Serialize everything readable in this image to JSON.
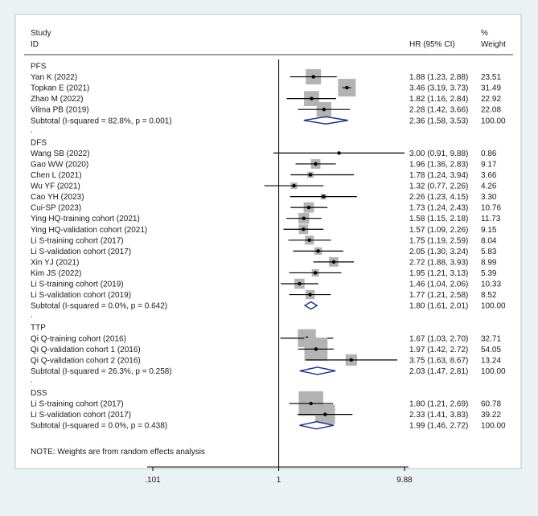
{
  "chart_data": {
    "type": "forest",
    "header": {
      "study_label_1": "Study",
      "study_label_2": "ID",
      "hr_label": "HR (95% CI)",
      "weight_label_1": "%",
      "weight_label_2": "Weight"
    },
    "x_scale": "log",
    "xlim": [
      0.101,
      9.88
    ],
    "ticks": [
      {
        "value": 0.101,
        "label": ".101"
      },
      {
        "value": 1,
        "label": "1"
      },
      {
        "value": 9.88,
        "label": "9.88"
      }
    ],
    "null_line": 1,
    "note": "NOTE: Weights are from random effects analysis",
    "groups": [
      {
        "name": "PFS",
        "studies": [
          {
            "study": "Yan K (2022)",
            "hr": 1.88,
            "lo": 1.23,
            "hi": 2.88,
            "ci_text": "1.88 (1.23, 2.88)",
            "weight": 23.51,
            "weight_text": "23.51"
          },
          {
            "study": "Topkan E (2021)",
            "hr": 3.46,
            "lo": 3.19,
            "hi": 3.73,
            "ci_text": "3.46 (3.19, 3.73)",
            "weight": 31.49,
            "weight_text": "31.49"
          },
          {
            "study": "Zhao M (2022)",
            "hr": 1.82,
            "lo": 1.16,
            "hi": 2.84,
            "ci_text": "1.82 (1.16, 2.84)",
            "weight": 22.92,
            "weight_text": "22.92"
          },
          {
            "study": "Vilma PB (2019)",
            "hr": 2.28,
            "lo": 1.42,
            "hi": 3.66,
            "ci_text": "2.28 (1.42, 3.66)",
            "weight": 22.08,
            "weight_text": "22.08"
          }
        ],
        "subtotal": {
          "label": "Subtotal  (I-squared = 82.8%, p = 0.001)",
          "hr": 2.36,
          "lo": 1.58,
          "hi": 3.53,
          "ci_text": "2.36 (1.58, 3.53)",
          "weight_text": "100.00"
        }
      },
      {
        "name": "DFS",
        "studies": [
          {
            "study": "Wang SB (2022)",
            "hr": 3.0,
            "lo": 0.91,
            "hi": 9.88,
            "ci_text": "3.00 (0.91, 9.88)",
            "weight": 0.86,
            "weight_text": "0.86"
          },
          {
            "study": "Gao WW (2020)",
            "hr": 1.96,
            "lo": 1.36,
            "hi": 2.83,
            "ci_text": "1.96 (1.36, 2.83)",
            "weight": 9.17,
            "weight_text": "9.17"
          },
          {
            "study": "Chen L (2021)",
            "hr": 1.78,
            "lo": 1.24,
            "hi": 3.94,
            "ci_text": "1.78 (1.24, 3.94)",
            "weight": 3.66,
            "weight_text": "3.66"
          },
          {
            "study": "Wu YF (2021)",
            "hr": 1.32,
            "lo": 0.77,
            "hi": 2.26,
            "ci_text": "1.32 (0.77, 2.26)",
            "weight": 4.26,
            "weight_text": "4.26"
          },
          {
            "study": "Cao YH (2023)",
            "hr": 2.26,
            "lo": 1.23,
            "hi": 4.15,
            "ci_text": "2.26 (1.23, 4.15)",
            "weight": 3.3,
            "weight_text": "3.30"
          },
          {
            "study": "Cui-SP (2023)",
            "hr": 1.73,
            "lo": 1.24,
            "hi": 2.43,
            "ci_text": "1.73 (1.24, 2.43)",
            "weight": 10.76,
            "weight_text": "10.76"
          },
          {
            "study": "Ying HQ-training cohort (2021)",
            "hr": 1.58,
            "lo": 1.15,
            "hi": 2.18,
            "ci_text": "1.58 (1.15, 2.18)",
            "weight": 11.73,
            "weight_text": "11.73"
          },
          {
            "study": "Ying HQ-validation cohort (2021)",
            "hr": 1.57,
            "lo": 1.09,
            "hi": 2.26,
            "ci_text": "1.57 (1.09, 2.26)",
            "weight": 9.15,
            "weight_text": "9.15"
          },
          {
            "study": "Li S-training cohort (2017)",
            "hr": 1.75,
            "lo": 1.19,
            "hi": 2.59,
            "ci_text": "1.75 (1.19, 2.59)",
            "weight": 8.04,
            "weight_text": "8.04"
          },
          {
            "study": "Li S-validation cohort (2017)",
            "hr": 2.05,
            "lo": 1.3,
            "hi": 3.24,
            "ci_text": "2.05 (1.30, 3.24)",
            "weight": 5.83,
            "weight_text": "5.83"
          },
          {
            "study": "Xin YJ (2021)",
            "hr": 2.72,
            "lo": 1.88,
            "hi": 3.93,
            "ci_text": "2.72 (1.88, 3.93)",
            "weight": 8.99,
            "weight_text": "8.99"
          },
          {
            "study": "Kim JS (2022)",
            "hr": 1.95,
            "lo": 1.21,
            "hi": 3.13,
            "ci_text": "1.95 (1.21, 3.13)",
            "weight": 5.39,
            "weight_text": "5.39"
          },
          {
            "study": "Li S-training cohort (2019)",
            "hr": 1.46,
            "lo": 1.04,
            "hi": 2.06,
            "ci_text": "1.46 (1.04, 2.06)",
            "weight": 10.33,
            "weight_text": "10.33"
          },
          {
            "study": "Li S-validation cohort (2019)",
            "hr": 1.77,
            "lo": 1.21,
            "hi": 2.58,
            "ci_text": "1.77 (1.21, 2.58)",
            "weight": 8.52,
            "weight_text": "8.52"
          }
        ],
        "subtotal": {
          "label": "Subtotal  (I-squared = 0.0%, p = 0.642)",
          "hr": 1.8,
          "lo": 1.61,
          "hi": 2.01,
          "ci_text": "1.80 (1.61, 2.01)",
          "weight_text": "100.00"
        }
      },
      {
        "name": "TTP",
        "studies": [
          {
            "study": "Qi Q-training cohort (2016)",
            "hr": 1.67,
            "lo": 1.03,
            "hi": 2.7,
            "ci_text": "1.67 (1.03, 2.70)",
            "weight": 32.71,
            "weight_text": "32.71"
          },
          {
            "study": "Qi Q-validation cohort 1 (2016)",
            "hr": 1.97,
            "lo": 1.42,
            "hi": 2.72,
            "ci_text": "1.97 (1.42, 2.72)",
            "weight": 54.05,
            "weight_text": "54.05"
          },
          {
            "study": "Qi Q-validation cohort 2 (2016)",
            "hr": 3.75,
            "lo": 1.63,
            "hi": 8.67,
            "ci_text": "3.75 (1.63, 8.67)",
            "weight": 13.24,
            "weight_text": "13.24"
          }
        ],
        "subtotal": {
          "label": "Subtotal  (I-squared = 26.3%, p = 0.258)",
          "hr": 2.03,
          "lo": 1.47,
          "hi": 2.81,
          "ci_text": "2.03 (1.47, 2.81)",
          "weight_text": "100.00"
        }
      },
      {
        "name": "DSS",
        "studies": [
          {
            "study": "Li S-training cohort (2017)",
            "hr": 1.8,
            "lo": 1.21,
            "hi": 2.69,
            "ci_text": "1.80 (1.21, 2.69)",
            "weight": 60.78,
            "weight_text": "60.78"
          },
          {
            "study": "Li S-validation cohort (2017)",
            "hr": 2.33,
            "lo": 1.41,
            "hi": 3.83,
            "ci_text": "2.33 (1.41, 3.83)",
            "weight": 39.22,
            "weight_text": "39.22"
          }
        ],
        "subtotal": {
          "label": "Subtotal  (I-squared = 0.0%, p = 0.438)",
          "hr": 1.99,
          "lo": 1.46,
          "hi": 2.72,
          "ci_text": "1.99 (1.46, 2.72)",
          "weight_text": "100.00"
        }
      }
    ]
  }
}
